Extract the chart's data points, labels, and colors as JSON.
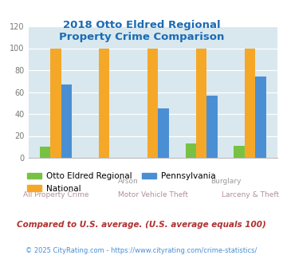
{
  "title": "2018 Otto Eldred Regional\nProperty Crime Comparison",
  "categories": [
    "All Property Crime",
    "Arson",
    "Motor Vehicle Theft",
    "Burglary",
    "Larceny & Theft"
  ],
  "otto_eldred": [
    10,
    0,
    0,
    13,
    11
  ],
  "national": [
    100,
    100,
    100,
    100,
    100
  ],
  "pennsylvania": [
    67,
    0,
    45,
    57,
    74
  ],
  "colors": {
    "otto_eldred": "#77c244",
    "national": "#f5a828",
    "pennsylvania": "#4a8fd4"
  },
  "ylim": [
    0,
    120
  ],
  "yticks": [
    0,
    20,
    40,
    60,
    80,
    100,
    120
  ],
  "title_color": "#1a6bb5",
  "bg_color": "#d8e8ee",
  "upper_xlabel_color": "#9a9a9a",
  "lower_xlabel_color": "#b0909a",
  "legend_labels": [
    "Otto Eldred Regional",
    "National",
    "Pennsylvania"
  ],
  "footnote1": "Compared to U.S. average. (U.S. average equals 100)",
  "footnote2": "© 2025 CityRating.com - https://www.cityrating.com/crime-statistics/",
  "footnote1_color": "#b03030",
  "footnote2_color": "#4a8fd4"
}
